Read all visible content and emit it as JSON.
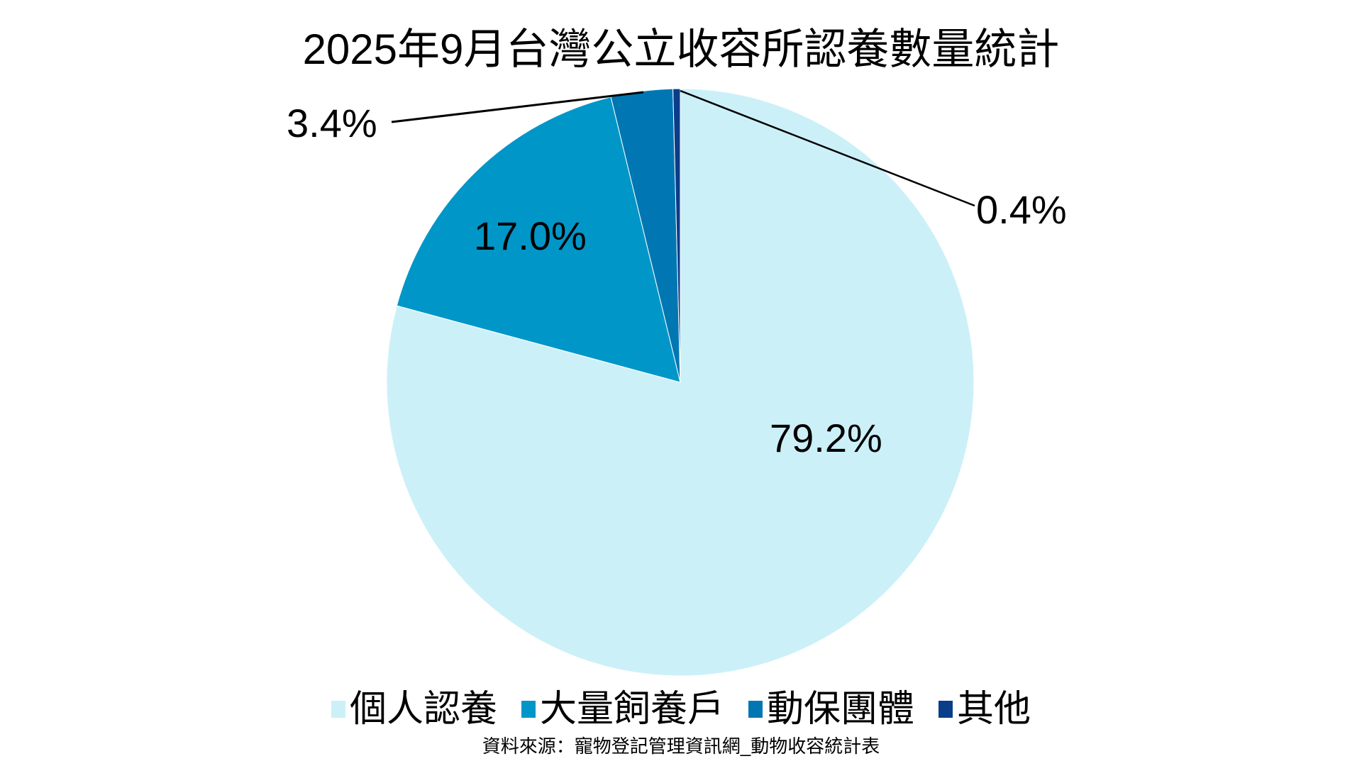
{
  "chart_data": {
    "type": "pie",
    "title": "2025年9月台灣公立收容所認養數量統計",
    "categories": [
      "個人認養",
      "大量飼養戶",
      "動保團體",
      "其他"
    ],
    "values": [
      79.2,
      17.0,
      3.4,
      0.4
    ],
    "unit": "%",
    "colors": [
      "#ccf0f8",
      "#0096c8",
      "#0077b3",
      "#0a3d8a"
    ],
    "data_labels": [
      "79.2%",
      "17.0%",
      "3.4%",
      "0.4%"
    ],
    "legend_position": "bottom",
    "source": "資料來源：寵物登記管理資訊網_動物收容統計表"
  },
  "labels": {
    "personal": "79.2%",
    "bulk": "17.0%",
    "groups": "3.4%",
    "other": "0.4%"
  },
  "legend": [
    {
      "label": "個人認養",
      "color": "#ccf0f8"
    },
    {
      "label": "大量飼養戶",
      "color": "#0096c8"
    },
    {
      "label": "動保團體",
      "color": "#0077b3"
    },
    {
      "label": "其他",
      "color": "#0a3d8a"
    }
  ]
}
